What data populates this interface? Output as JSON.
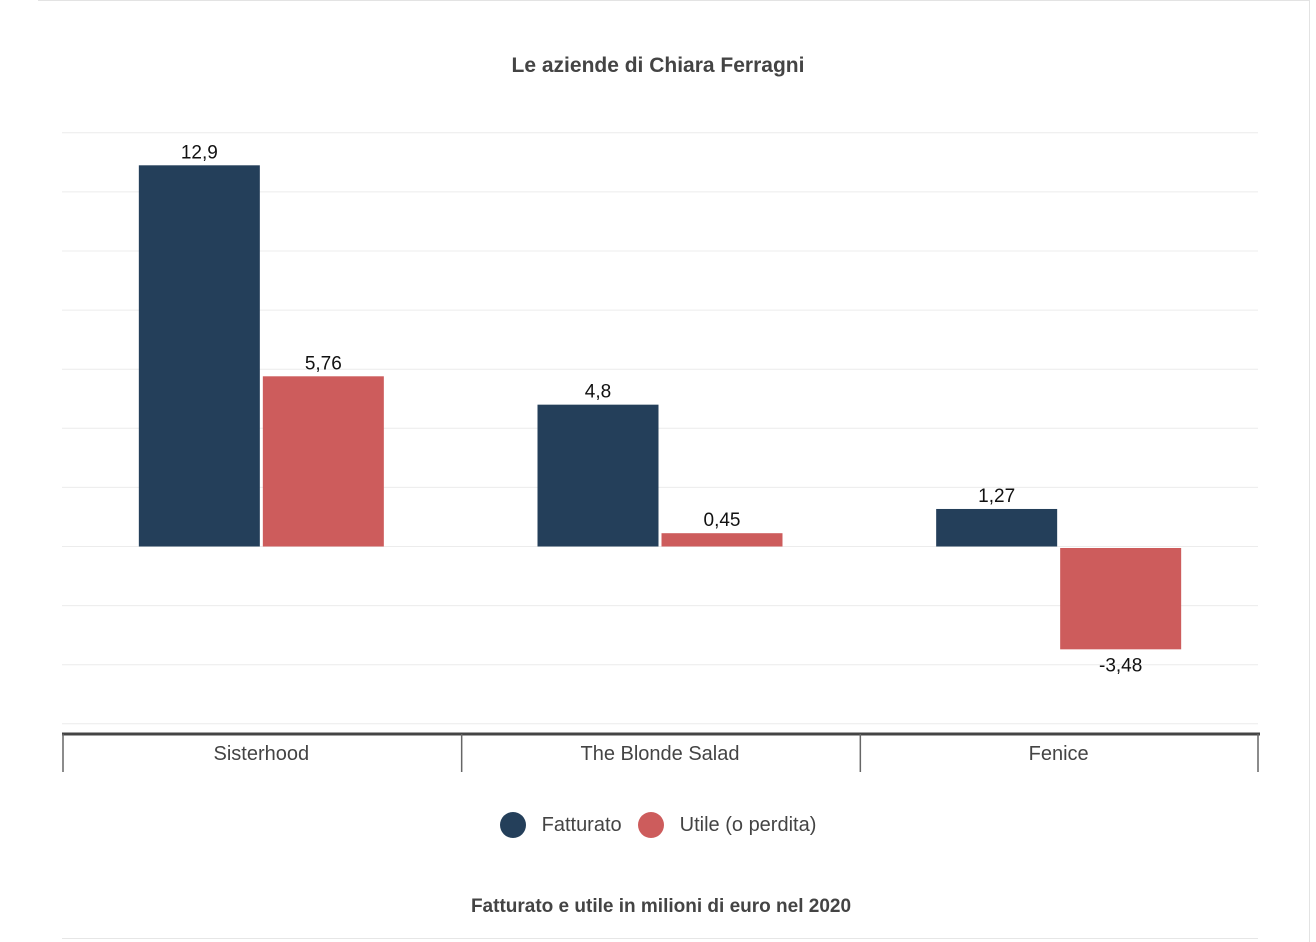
{
  "chart_data": {
    "type": "bar",
    "title": "Le aziende di Chiara Ferragni",
    "note": "Fatturato e utile in milioni di euro nel 2020",
    "categories": [
      "Sisterhood",
      "The Blonde Salad",
      "Fenice"
    ],
    "series": [
      {
        "name": "Fatturato",
        "color": "#243f5a",
        "values": [
          12.9,
          4.8,
          1.27
        ],
        "labels": [
          "12,9",
          "4,8",
          "1,27"
        ]
      },
      {
        "name": "Utile (o perdita)",
        "color": "#cd5c5c",
        "values": [
          5.76,
          0.45,
          -3.48
        ],
        "labels": [
          "5,76",
          "0,45",
          "-3,48"
        ]
      }
    ],
    "ylim": [
      -6,
      14
    ],
    "grid": true,
    "legend": "bottom"
  }
}
